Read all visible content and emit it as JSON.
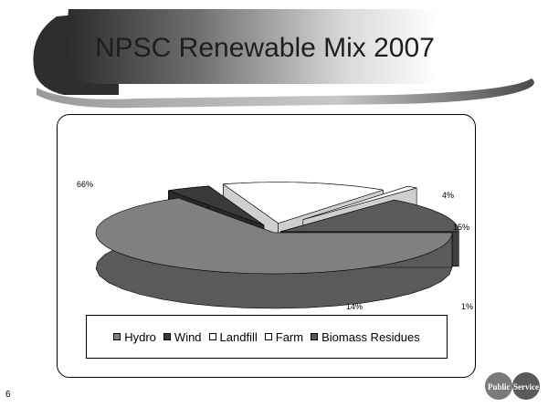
{
  "slide": {
    "title": "NPSC Renewable Mix 2007",
    "number": "6",
    "logo_text_1": "Public",
    "logo_text_2": "Service"
  },
  "chart_data": {
    "type": "pie",
    "categories": [
      "Hydro",
      "Wind",
      "Landfill",
      "Farm",
      "Biomass Residues"
    ],
    "values": [
      66,
      4,
      15,
      1,
      14
    ],
    "value_labels": [
      "66%",
      "4%",
      "15%",
      "1%",
      "14%"
    ],
    "colors": [
      "#808080",
      "#3a3a3a",
      "#ffffff",
      "#ffffff",
      "#5a5a5a"
    ],
    "legend_position": "bottom",
    "style": "3d-exploded"
  }
}
